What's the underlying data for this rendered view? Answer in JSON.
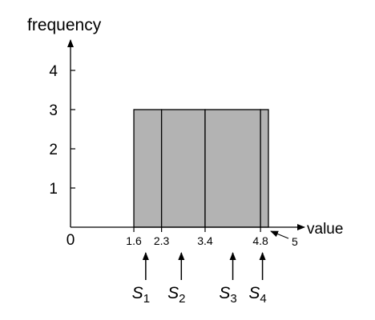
{
  "chart_data": {
    "type": "bar",
    "xlabel": "value",
    "ylabel": "frequency",
    "yticks": [
      1,
      2,
      3,
      4
    ],
    "xticks": [
      "1.6",
      "2.3",
      "3.4",
      "4.8"
    ],
    "origin_label": "0",
    "end_marker_label": "5",
    "end_marker_value": 5,
    "xlim": [
      0,
      5
    ],
    "ylim": [
      0,
      4
    ],
    "bins": [
      {
        "x0": 1.6,
        "x1": 2.3,
        "value": 3
      },
      {
        "x0": 2.3,
        "x1": 3.4,
        "value": 3
      },
      {
        "x0": 3.4,
        "x1": 4.8,
        "value": 3
      },
      {
        "x0": 4.8,
        "x1": 5.0,
        "value": 3
      }
    ],
    "bar_color": "#b3b3b3",
    "annotations": [
      {
        "base": "S",
        "sub": "1",
        "x": 1.9
      },
      {
        "base": "S",
        "sub": "2",
        "x": 2.8
      },
      {
        "base": "S",
        "sub": "3",
        "x": 4.1
      },
      {
        "base": "S",
        "sub": "4",
        "x": 4.85
      }
    ]
  }
}
